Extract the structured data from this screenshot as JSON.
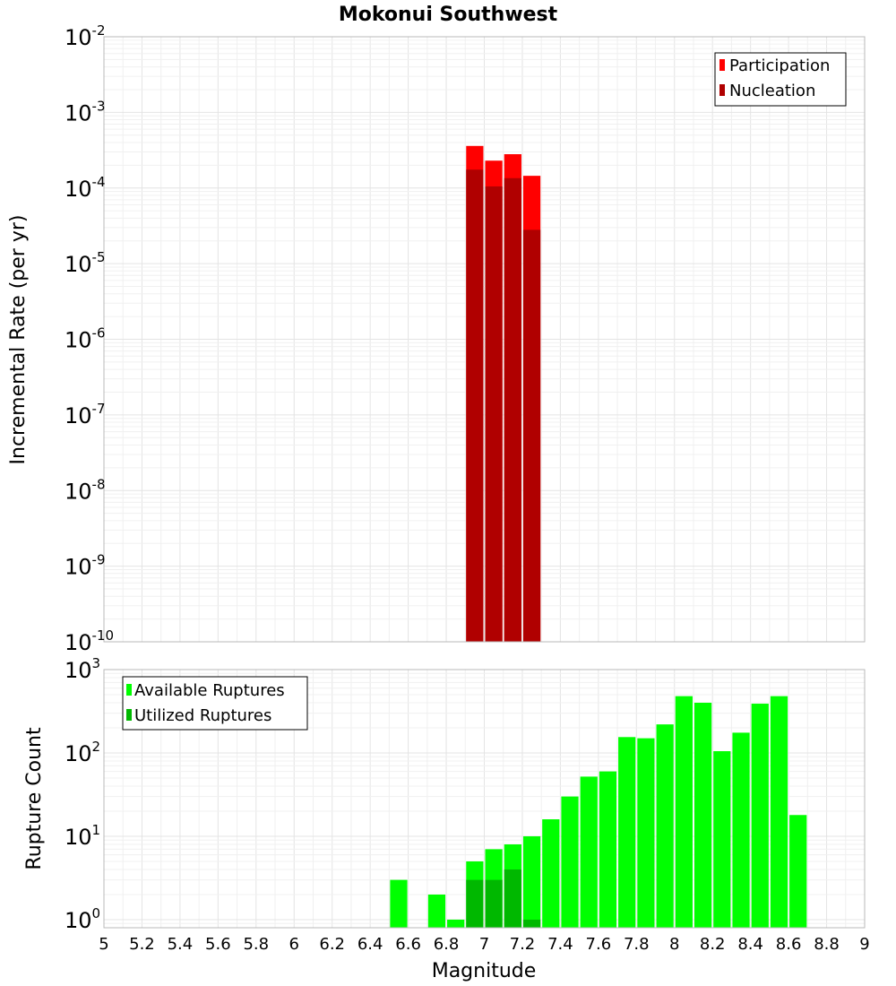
{
  "chart_data": [
    {
      "type": "bar",
      "title": "Mokonui Southwest",
      "xlabel": "",
      "ylabel": "Incremental Rate (per yr)",
      "yscale": "log",
      "xlim": [
        5,
        9
      ],
      "ylim": [
        1e-10,
        0.01
      ],
      "legend": "top-right",
      "grid": true,
      "bin_width": 0.1,
      "series": [
        {
          "name": "Participation",
          "color": "#ff0000",
          "x": [
            6.95,
            7.05,
            7.15,
            7.25
          ],
          "values": [
            0.00036,
            0.00023,
            0.00028,
            0.000145
          ]
        },
        {
          "name": "Nucleation",
          "color": "#b00000",
          "x": [
            6.95,
            7.05,
            7.15,
            7.25
          ],
          "values": [
            0.000175,
            0.000105,
            0.000135,
            2.8e-05
          ]
        }
      ]
    },
    {
      "type": "bar",
      "xlabel": "Magnitude",
      "ylabel": "Rupture Count",
      "yscale": "log",
      "xlim": [
        5,
        9
      ],
      "ylim": [
        0.8,
        1000
      ],
      "legend": "top-left",
      "grid": true,
      "bin_width": 0.1,
      "series": [
        {
          "name": "Available Ruptures",
          "color": "#00ff00",
          "x": [
            6.55,
            6.75,
            6.85,
            6.95,
            7.05,
            7.15,
            7.25,
            7.35,
            7.45,
            7.55,
            7.65,
            7.75,
            7.85,
            7.95,
            8.05,
            8.15,
            8.25,
            8.35,
            8.45,
            8.55,
            8.65
          ],
          "values": [
            3,
            2,
            1,
            5,
            7,
            8,
            10,
            16,
            30,
            52,
            60,
            155,
            150,
            220,
            480,
            400,
            105,
            175,
            390,
            480,
            18
          ]
        },
        {
          "name": "Utilized Ruptures",
          "color": "#00b800",
          "x": [
            6.95,
            7.05,
            7.15,
            7.25
          ],
          "values": [
            3,
            3,
            4,
            1
          ]
        }
      ]
    }
  ],
  "axes": {
    "top_y_ticks": [
      {
        "base": "10",
        "exp": "-2"
      },
      {
        "base": "10",
        "exp": "-3"
      },
      {
        "base": "10",
        "exp": "-4"
      },
      {
        "base": "10",
        "exp": "-5"
      },
      {
        "base": "10",
        "exp": "-6"
      },
      {
        "base": "10",
        "exp": "-7"
      },
      {
        "base": "10",
        "exp": "-8"
      },
      {
        "base": "10",
        "exp": "-9"
      },
      {
        "base": "10",
        "exp": "-10"
      }
    ],
    "bottom_y_ticks": [
      {
        "base": "10",
        "exp": "3"
      },
      {
        "base": "10",
        "exp": "2"
      },
      {
        "base": "10",
        "exp": "1"
      },
      {
        "base": "10",
        "exp": "0"
      }
    ],
    "x_ticks": [
      "5",
      "5.2",
      "5.4",
      "5.6",
      "5.8",
      "6",
      "6.2",
      "6.4",
      "6.6",
      "6.8",
      "7",
      "7.2",
      "7.4",
      "7.6",
      "7.8",
      "8",
      "8.2",
      "8.4",
      "8.6",
      "8.8",
      "9"
    ]
  }
}
